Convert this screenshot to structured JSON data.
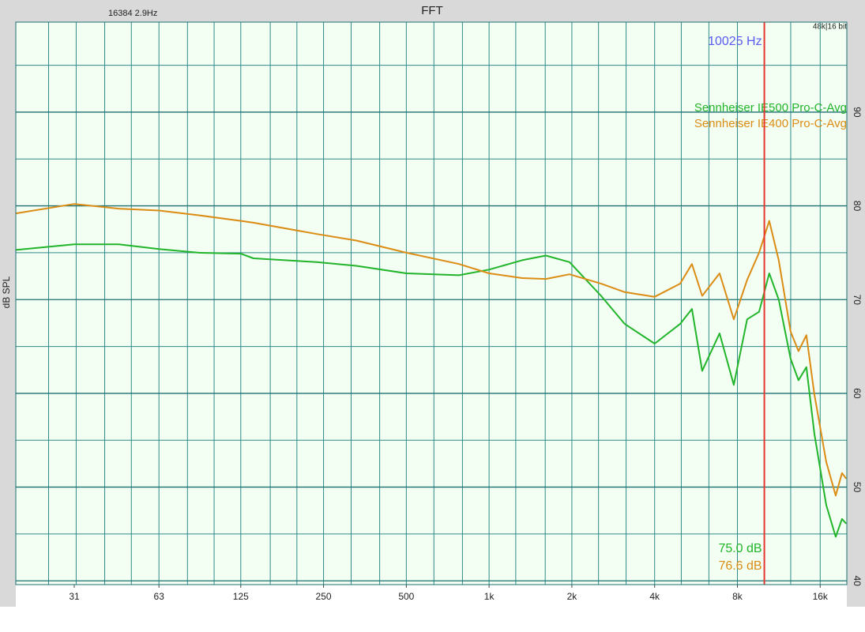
{
  "chart_data": {
    "type": "line",
    "title": "FFT",
    "header_left": "16384  2.9Hz",
    "header_right": "48k|16 bit",
    "y_label": "dB SPL",
    "x_scale": "log",
    "grid": true,
    "legend_position": "upper right",
    "x": [
      19,
      31,
      45,
      63,
      88,
      125,
      139,
      236,
      329,
      500,
      777,
      1000,
      1318,
      1609,
      1962,
      2555,
      3115,
      4000,
      4950,
      5465,
      5958,
      6888,
      7760,
      8680,
      9590,
      10447,
      11310,
      12490,
      13345,
      14257,
      15237,
      16824,
      18213,
      19207,
      19900
    ],
    "series": [
      {
        "name": "Sennheiser IE500 Pro-C-Avg",
        "color": "#22b42a",
        "values": [
          75.3,
          75.9,
          75.9,
          75.4,
          75.0,
          74.9,
          74.4,
          74.0,
          73.6,
          72.8,
          72.6,
          73.2,
          74.2,
          74.7,
          74.0,
          70.4,
          67.4,
          65.3,
          67.4,
          69.0,
          62.4,
          66.4,
          60.9,
          67.9,
          68.7,
          72.8,
          70.0,
          63.7,
          61.4,
          62.8,
          55.7,
          48.1,
          44.7,
          46.6,
          46.1
        ]
      },
      {
        "name": "Sennheiser IE400 Pro-C-Avg",
        "color": "#db8c14",
        "values": [
          79.2,
          80.2,
          79.7,
          79.5,
          79.0,
          78.4,
          78.2,
          77.0,
          76.3,
          75.0,
          73.8,
          72.8,
          72.3,
          72.2,
          72.7,
          71.7,
          70.8,
          70.3,
          71.7,
          73.8,
          70.4,
          72.8,
          67.9,
          72.1,
          75.0,
          78.4,
          74.2,
          66.6,
          64.5,
          66.2,
          59.9,
          52.7,
          49.1,
          51.5,
          50.9
        ]
      }
    ],
    "xlim": [
      19,
      20000
    ],
    "xticks": [
      31,
      63,
      125,
      250,
      500,
      {
        "value": 1000,
        "label": "1k"
      },
      {
        "value": 2000,
        "label": "2k"
      },
      {
        "value": 4000,
        "label": "4k"
      },
      {
        "value": 8000,
        "label": "8k"
      },
      {
        "value": 16000,
        "label": "16k"
      }
    ],
    "xgrid": [
      25,
      31.5,
      40,
      50,
      63,
      80,
      100,
      125,
      160,
      200,
      250,
      315,
      400,
      500,
      630,
      800,
      1000,
      1250,
      1600,
      2000,
      2500,
      3150,
      4000,
      5000,
      6300,
      8000,
      10000,
      12500,
      16000
    ],
    "ylim": [
      39.6,
      99.6
    ],
    "yticks": [
      40,
      50,
      60,
      70,
      80,
      90
    ],
    "ygrid": [
      45,
      55,
      65,
      75,
      85,
      95
    ],
    "cursor": {
      "x": 10025,
      "label": "10025 Hz",
      "color": "#e8392e",
      "label_color": "#5a5af0",
      "readouts": [
        "75.0 dB",
        "76.6 dB"
      ]
    }
  }
}
